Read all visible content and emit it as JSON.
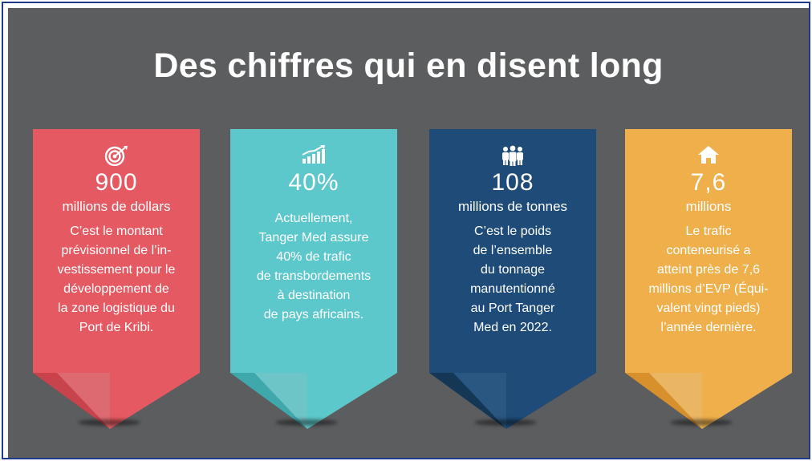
{
  "title": "Des chiffres qui en disent long",
  "cards": [
    {
      "icon": "target-icon",
      "color": "#e55a62",
      "value": "900",
      "unit": "millions de dollars",
      "description": "C’est le montant\nprévisionnel de l’in-\nvestissement pour le\ndéveloppement de\nla zone logistique du\nPort de Kribi."
    },
    {
      "icon": "bar-growth-icon",
      "color": "#5dc8cc",
      "value": "40%",
      "unit": "",
      "description": "Actuellement,\nTanger Med assure\n40% de trafic\nde transbordements\nà destination\nde pays africains."
    },
    {
      "icon": "people-group-icon",
      "color": "#1e4b78",
      "value": "108",
      "unit": "millions de tonnes",
      "description": "C’est le poids\nde l’ensemble\ndu tonnage\nmanutentionné\nau Port Tanger\nMed en 2022."
    },
    {
      "icon": "house-icon",
      "color": "#efb04c",
      "value": "7,6",
      "unit": "millions",
      "description": "Le trafic\nconteneurisé a\natteint près de 7,6\nmillions d’EVP (Équi-\nvalent vingt pieds)\nl’année dernière."
    }
  ]
}
